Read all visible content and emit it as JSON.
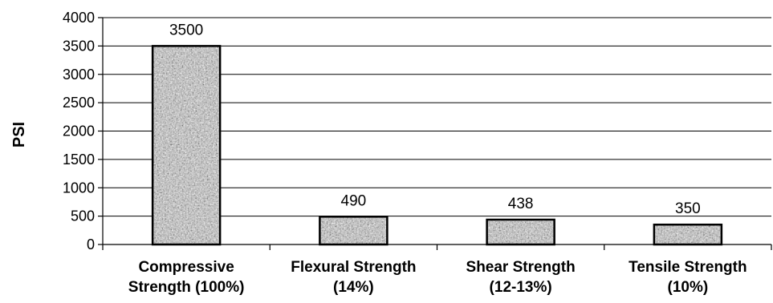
{
  "chart_data": {
    "type": "bar",
    "title": "",
    "xlabel": "",
    "ylabel": "PSI",
    "ylim": [
      0,
      4000
    ],
    "yticks": [
      0,
      500,
      1000,
      1500,
      2000,
      2500,
      3000,
      3500,
      4000
    ],
    "grid": true,
    "legend": "none",
    "categories": [
      [
        "Compressive",
        "Strength (100%)"
      ],
      [
        "Flexural Strength",
        "(14%)"
      ],
      [
        "Shear Strength",
        "(12-13%)"
      ],
      [
        "Tensile Strength",
        "(10%)"
      ]
    ],
    "values": [
      3500,
      490,
      438,
      350
    ],
    "data_labels": [
      "3500",
      "490",
      "438",
      "350"
    ],
    "bar_fill": "granite-gray-texture"
  }
}
